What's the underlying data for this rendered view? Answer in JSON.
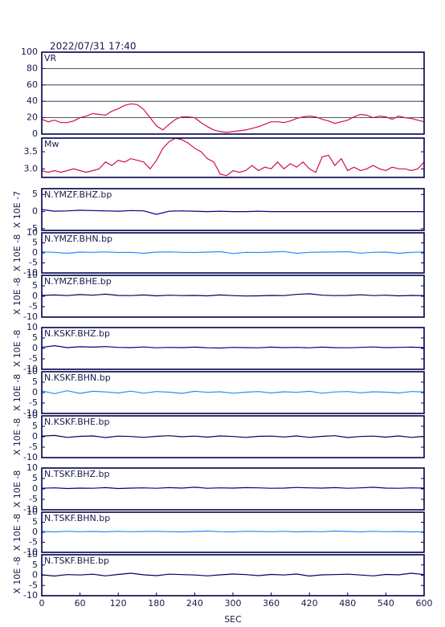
{
  "header": {
    "timestamp": "2022/07/31 17:40"
  },
  "chart_data": [
    {
      "type": "line",
      "title": "VR",
      "color": "#d0104c",
      "grid": true,
      "xlim": [
        0,
        600
      ],
      "ylim": [
        0,
        100
      ],
      "yticks": [
        0,
        20,
        40,
        60,
        80,
        100
      ],
      "x": [
        0,
        10,
        20,
        30,
        40,
        50,
        60,
        70,
        80,
        90,
        100,
        110,
        120,
        130,
        140,
        150,
        160,
        170,
        180,
        190,
        200,
        210,
        220,
        230,
        240,
        250,
        260,
        270,
        280,
        290,
        300,
        310,
        320,
        330,
        340,
        350,
        360,
        370,
        380,
        390,
        400,
        410,
        420,
        430,
        440,
        450,
        460,
        470,
        480,
        490,
        500,
        510,
        520,
        530,
        540,
        550,
        560,
        570,
        580,
        590,
        600
      ],
      "values": [
        18,
        15,
        17,
        14,
        14,
        16,
        20,
        22,
        25,
        24,
        23,
        28,
        31,
        35,
        37,
        36,
        30,
        20,
        10,
        5,
        12,
        18,
        21,
        21,
        20,
        14,
        9,
        5,
        3,
        2,
        3,
        4,
        5,
        7,
        9,
        12,
        15,
        15,
        14,
        16,
        19,
        21,
        22,
        21,
        18,
        16,
        13,
        15,
        17,
        21,
        24,
        23,
        20,
        22,
        21,
        18,
        22,
        20,
        19,
        17,
        15
      ]
    },
    {
      "type": "line",
      "title": "Mw",
      "color": "#d0104c",
      "xlim": [
        0,
        600
      ],
      "ylim": [
        2.75,
        3.9
      ],
      "yticks": [
        {
          "value": 3,
          "label": "3.0"
        },
        3.5
      ],
      "x": [
        0,
        10,
        20,
        30,
        40,
        50,
        60,
        70,
        80,
        90,
        100,
        110,
        120,
        130,
        140,
        150,
        160,
        170,
        180,
        190,
        200,
        210,
        220,
        230,
        240,
        250,
        260,
        270,
        280,
        290,
        300,
        310,
        320,
        330,
        340,
        350,
        360,
        370,
        380,
        390,
        400,
        410,
        420,
        430,
        440,
        450,
        460,
        470,
        480,
        490,
        500,
        510,
        520,
        530,
        540,
        550,
        560,
        570,
        580,
        590,
        600
      ],
      "values": [
        2.95,
        2.9,
        2.95,
        2.9,
        2.95,
        3.0,
        2.95,
        2.9,
        2.95,
        3.0,
        3.2,
        3.1,
        3.25,
        3.2,
        3.3,
        3.25,
        3.2,
        3.0,
        3.25,
        3.6,
        3.8,
        3.9,
        3.85,
        3.75,
        3.6,
        3.5,
        3.3,
        3.2,
        2.85,
        2.8,
        2.95,
        2.9,
        2.95,
        3.1,
        2.95,
        3.05,
        3.0,
        3.2,
        3.0,
        3.15,
        3.05,
        3.2,
        3.0,
        2.9,
        3.35,
        3.4,
        3.1,
        3.3,
        2.95,
        3.05,
        2.95,
        3.0,
        3.1,
        3.0,
        2.95,
        3.05,
        3.0,
        3.0,
        2.95,
        3.0,
        3.2
      ]
    },
    {
      "type": "line",
      "title": "N.YMZF.BHZ.bp",
      "ylabel": "X 10E -7",
      "color": "#00008b",
      "xlim": [
        0,
        600
      ],
      "ylim": [
        -5.5,
        6.7
      ],
      "yticks": [
        -5,
        0,
        5
      ],
      "x": [
        0,
        20,
        40,
        60,
        80,
        100,
        120,
        140,
        160,
        180,
        200,
        220,
        240,
        260,
        280,
        300,
        320,
        340,
        360,
        380,
        400,
        420,
        440,
        460,
        480,
        500,
        520,
        540,
        560,
        580,
        600
      ],
      "values": [
        0.6,
        0.1,
        0.2,
        0.4,
        0.3,
        0.2,
        0.1,
        0.3,
        0.2,
        -0.8,
        0.1,
        0.2,
        0.1,
        0,
        0.1,
        0,
        0,
        0.1,
        0,
        0,
        0,
        0,
        0,
        0,
        0,
        0,
        0,
        0,
        0,
        0,
        0
      ]
    },
    {
      "type": "line",
      "title": "N.YMZF.BHN.bp",
      "ylabel": "X 10E -8",
      "color": "#1e90ff",
      "xlim": [
        0,
        600
      ],
      "ylim": [
        -10,
        10
      ],
      "yticks": [
        -10,
        -5,
        0,
        5,
        10
      ],
      "x": [
        0,
        20,
        40,
        60,
        80,
        100,
        120,
        140,
        160,
        180,
        200,
        220,
        240,
        260,
        280,
        300,
        320,
        340,
        360,
        380,
        400,
        420,
        440,
        460,
        480,
        500,
        520,
        540,
        560,
        580,
        600
      ],
      "values": [
        0.5,
        0.3,
        -0.2,
        0.4,
        0.3,
        0.5,
        0.2,
        0.3,
        -0.2,
        0.4,
        0.5,
        0.3,
        0.2,
        0.4,
        0.6,
        -0.3,
        0.3,
        0.2,
        0.4,
        0.7,
        -0.2,
        0.3,
        0.4,
        0.5,
        0.6,
        -0.1,
        0.3,
        0.4,
        -0.2,
        0.3,
        0.5
      ]
    },
    {
      "type": "line",
      "title": "N.YMZF.BHE.bp",
      "ylabel": "X 10E -8",
      "color": "#000060",
      "xlim": [
        0,
        600
      ],
      "ylim": [
        -10,
        10
      ],
      "yticks": [
        -10,
        -5,
        0,
        5,
        10
      ],
      "x": [
        0,
        20,
        40,
        60,
        80,
        100,
        120,
        140,
        160,
        180,
        200,
        220,
        240,
        260,
        280,
        300,
        320,
        340,
        360,
        380,
        400,
        420,
        440,
        460,
        480,
        500,
        520,
        540,
        560,
        580,
        600
      ],
      "values": [
        0.4,
        0.6,
        0.3,
        0.8,
        0.5,
        1.0,
        0.4,
        0.3,
        0.6,
        0.2,
        0.5,
        0.3,
        0.4,
        0.2,
        0.6,
        0.3,
        0.1,
        0.2,
        0.4,
        0.3,
        0.9,
        1.2,
        0.5,
        0.3,
        0.4,
        0.7,
        0.3,
        0.5,
        0.2,
        0.4,
        0.3
      ]
    },
    {
      "type": "line",
      "title": "N.KSKF.BHZ.bp",
      "ylabel": "X 10E -8",
      "color": "#00008b",
      "xlim": [
        0,
        600
      ],
      "ylim": [
        -10,
        10
      ],
      "yticks": [
        -10,
        -5,
        0,
        5,
        10
      ],
      "x": [
        0,
        20,
        40,
        60,
        80,
        100,
        120,
        140,
        160,
        180,
        200,
        220,
        240,
        260,
        280,
        300,
        320,
        340,
        360,
        380,
        400,
        420,
        440,
        460,
        480,
        500,
        520,
        540,
        560,
        580,
        600
      ],
      "values": [
        0.5,
        1.3,
        0.4,
        0.8,
        0.6,
        0.9,
        0.5,
        0.4,
        0.7,
        0.3,
        0.5,
        0.4,
        0.6,
        0.3,
        0.2,
        0.5,
        0.4,
        0.3,
        0.6,
        0.4,
        0.5,
        0.3,
        0.6,
        0.4,
        0.3,
        0.5,
        0.7,
        0.4,
        0.5,
        0.6,
        0.4
      ]
    },
    {
      "type": "line",
      "title": "N.KSKF.BHN.bp",
      "ylabel": "X 10E -8",
      "color": "#1e90ff",
      "xlim": [
        0,
        600
      ],
      "ylim": [
        -10,
        10
      ],
      "yticks": [
        -10,
        -5,
        0,
        5,
        10
      ],
      "x": [
        0,
        20,
        40,
        60,
        80,
        100,
        120,
        140,
        160,
        180,
        200,
        220,
        240,
        260,
        280,
        300,
        320,
        340,
        360,
        380,
        400,
        420,
        440,
        460,
        480,
        500,
        520,
        540,
        560,
        580,
        600
      ],
      "values": [
        0.8,
        -0.5,
        0.9,
        -0.4,
        0.6,
        0.3,
        -0.2,
        0.7,
        -0.3,
        0.5,
        0.2,
        -0.4,
        0.6,
        0.1,
        0.4,
        -0.3,
        0.2,
        0.5,
        -0.2,
        0.4,
        0.1,
        0.6,
        -0.3,
        0.3,
        0.5,
        -0.1,
        0.4,
        0.2,
        -0.2,
        0.5,
        0.3
      ]
    },
    {
      "type": "line",
      "title": "N.KSKF.BHE.bp",
      "ylabel": "X 10E -8",
      "color": "#000060",
      "xlim": [
        0,
        600
      ],
      "ylim": [
        -10,
        10
      ],
      "yticks": [
        -10,
        -5,
        0,
        5,
        10
      ],
      "x": [
        0,
        20,
        40,
        60,
        80,
        100,
        120,
        140,
        160,
        180,
        200,
        220,
        240,
        260,
        280,
        300,
        320,
        340,
        360,
        380,
        400,
        420,
        440,
        460,
        480,
        500,
        520,
        540,
        560,
        580,
        600
      ],
      "values": [
        0.3,
        0.6,
        -0.3,
        0.2,
        0.4,
        -0.4,
        0.3,
        0.1,
        -0.3,
        0.2,
        0.5,
        0,
        0.3,
        -0.2,
        0.4,
        0.1,
        -0.3,
        0.2,
        0.3,
        -0.1,
        0.4,
        -0.3,
        0.2,
        0.5,
        -0.4,
        0.1,
        0.3,
        -0.2,
        0.4,
        -0.3,
        0.2
      ]
    },
    {
      "type": "line",
      "title": "N.TSKF.BHZ.bp",
      "ylabel": "X 10E -8",
      "color": "#00008b",
      "xlim": [
        0,
        600
      ],
      "ylim": [
        -10,
        10
      ],
      "yticks": [
        -10,
        -5,
        0,
        5,
        10
      ],
      "x": [
        0,
        20,
        40,
        60,
        80,
        100,
        120,
        140,
        160,
        180,
        200,
        220,
        240,
        260,
        280,
        300,
        320,
        340,
        360,
        380,
        400,
        420,
        440,
        460,
        480,
        500,
        520,
        540,
        560,
        580,
        600
      ],
      "values": [
        0.3,
        0.5,
        0.2,
        0.4,
        0.3,
        0.6,
        0.2,
        0.4,
        0.5,
        0.3,
        0.6,
        0.4,
        0.8,
        0.3,
        0.5,
        0.4,
        0.6,
        0.5,
        0.3,
        0.4,
        0.7,
        0.5,
        0.4,
        0.6,
        0.3,
        0.5,
        0.8,
        0.4,
        0.3,
        0.5,
        0.4
      ]
    },
    {
      "type": "line",
      "title": "N.TSKF.BHN.bp",
      "ylabel": "X 10E -8",
      "color": "#1e90ff",
      "xlim": [
        0,
        600
      ],
      "ylim": [
        -10,
        10
      ],
      "yticks": [
        -10,
        -5,
        0,
        5,
        10
      ],
      "x": [
        0,
        20,
        40,
        60,
        80,
        100,
        120,
        140,
        160,
        180,
        200,
        220,
        240,
        260,
        280,
        300,
        320,
        340,
        360,
        380,
        400,
        420,
        440,
        460,
        480,
        500,
        520,
        540,
        560,
        580,
        600
      ],
      "values": [
        0.4,
        0.2,
        0.5,
        0.3,
        0.4,
        0.2,
        0.5,
        0.3,
        0.4,
        0.5,
        0.3,
        0.2,
        0.4,
        0.6,
        0.3,
        0.2,
        0.5,
        0.4,
        0.3,
        0.5,
        0.2,
        0.4,
        0.3,
        0.6,
        0.4,
        0.2,
        0.5,
        0.3,
        0.4,
        0.2,
        0.3
      ]
    },
    {
      "type": "line",
      "title": "N.TSKF.BHE.bp",
      "ylabel": "X 10E -8",
      "color": "#000060",
      "xlim": [
        0,
        600
      ],
      "ylim": [
        -10,
        10
      ],
      "yticks": [
        -10,
        -5,
        0,
        5,
        10
      ],
      "xlabel": "SEC",
      "xticks": [
        0,
        60,
        120,
        180,
        240,
        300,
        360,
        420,
        480,
        540,
        600
      ],
      "x": [
        0,
        20,
        40,
        60,
        80,
        100,
        120,
        140,
        160,
        180,
        200,
        220,
        240,
        260,
        280,
        300,
        320,
        340,
        360,
        380,
        400,
        420,
        440,
        460,
        480,
        500,
        520,
        540,
        560,
        580,
        600
      ],
      "values": [
        0.2,
        -0.4,
        0.3,
        0.1,
        0.5,
        -0.3,
        0.4,
        1.0,
        0.2,
        -0.2,
        0.5,
        0.3,
        0.1,
        -0.3,
        0.2,
        0.6,
        0.3,
        -0.2,
        0.4,
        0.1,
        0.6,
        -0.4,
        0.2,
        0.3,
        0.5,
        0.1,
        -0.3,
        0.4,
        0.2,
        1.0,
        0.3
      ]
    }
  ]
}
